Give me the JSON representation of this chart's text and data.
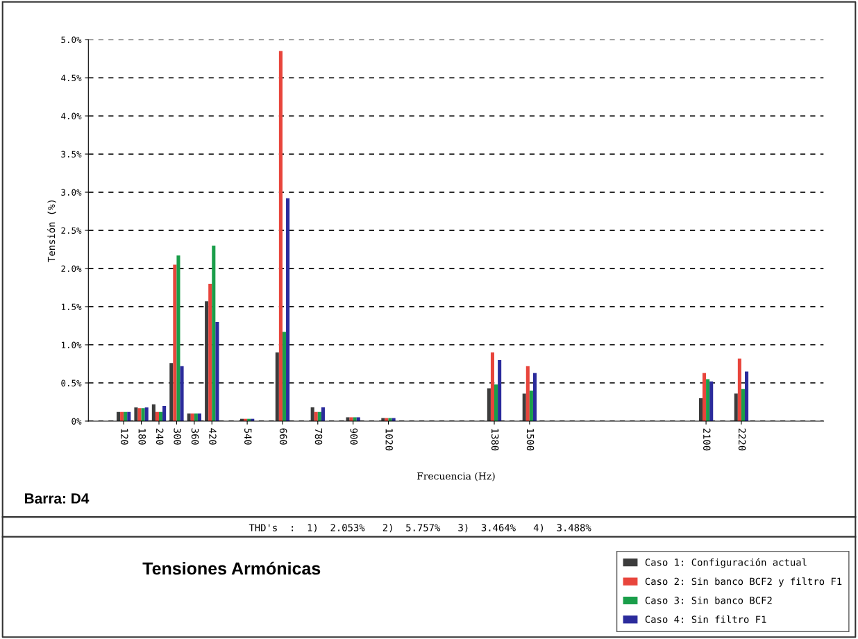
{
  "chart_data": {
    "type": "bar",
    "title": "Tensiones Armónicas",
    "xlabel": "Frecuencia (Hz)",
    "ylabel": "Tensión (%)",
    "x": [
      120,
      180,
      240,
      300,
      360,
      420,
      540,
      660,
      780,
      900,
      1020,
      1380,
      1500,
      2100,
      2220
    ],
    "series": [
      {
        "name": "Caso 1: Configuración actual",
        "color": "#3c3c3c",
        "values": [
          0.12,
          0.18,
          0.22,
          0.76,
          0.1,
          1.57,
          0.03,
          0.9,
          0.18,
          0.05,
          0.04,
          0.43,
          0.36,
          0.3,
          0.36
        ]
      },
      {
        "name": "Caso 2: Sin banco BCF2 y filtro F1",
        "color": "#e8453c",
        "values": [
          0.12,
          0.17,
          0.12,
          2.05,
          0.1,
          1.8,
          0.03,
          4.85,
          0.12,
          0.05,
          0.04,
          0.9,
          0.72,
          0.63,
          0.82
        ]
      },
      {
        "name": "Caso 3: Sin banco BCF2",
        "color": "#1a9e4a",
        "values": [
          0.12,
          0.17,
          0.12,
          2.17,
          0.1,
          2.3,
          0.03,
          1.17,
          0.12,
          0.05,
          0.04,
          0.48,
          0.4,
          0.55,
          0.42
        ]
      },
      {
        "name": "Caso 4: Sin filtro F1",
        "color": "#2b2b9c",
        "values": [
          0.12,
          0.18,
          0.2,
          0.72,
          0.1,
          1.3,
          0.03,
          2.92,
          0.18,
          0.05,
          0.04,
          0.8,
          0.63,
          0.52,
          0.65
        ]
      }
    ],
    "xlim": [
      0,
      2500
    ],
    "xticks": [
      120,
      180,
      240,
      300,
      360,
      420,
      540,
      660,
      780,
      900,
      1020,
      1380,
      1500,
      2100,
      2220
    ],
    "ylim": [
      0,
      5
    ],
    "yticks": [
      {
        "value": 0,
        "label": "0%"
      },
      {
        "value": 0.5,
        "label": "0.5%"
      },
      {
        "value": 1,
        "label": "1.0%"
      },
      {
        "value": 1.5,
        "label": "1.5%"
      },
      {
        "value": 2,
        "label": "2.0%"
      },
      {
        "value": 2.5,
        "label": "2.5%"
      },
      {
        "value": 3,
        "label": "3.0%"
      },
      {
        "value": 3.5,
        "label": "3.5%"
      },
      {
        "value": 4,
        "label": "4.0%"
      },
      {
        "value": 4.5,
        "label": "4.5%"
      },
      {
        "value": 5,
        "label": "5.0%"
      }
    ],
    "grid": "y",
    "legend": "bottom right",
    "annotations": [
      "Barra: D4",
      "THD's  :  1)  2.053%   2)  5.757%   3)  3.464%   4)  3.488%"
    ]
  }
}
